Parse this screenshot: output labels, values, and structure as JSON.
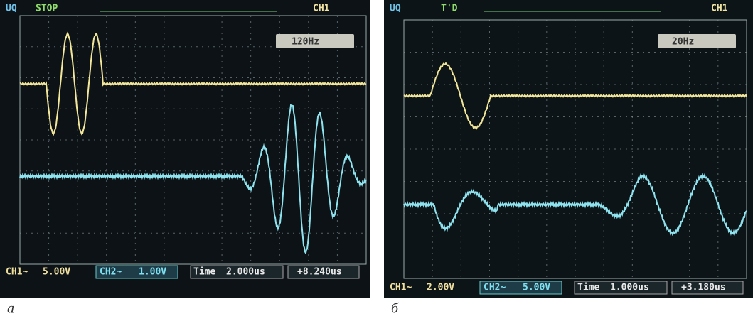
{
  "panels": [
    {
      "top_left": "UQ",
      "status": "STOP",
      "channel": "CH1",
      "frequency": "120Hz",
      "ch1": {
        "label": "CH1~",
        "scale": "5.00V"
      },
      "ch2": {
        "label": "CH2~",
        "scale": "1.00V"
      },
      "time": {
        "label": "Time",
        "value": "2.000us"
      },
      "offset": "+8.240us",
      "caption": "а"
    },
    {
      "top_left": "UQ",
      "status": "T'D",
      "channel": "CH1",
      "frequency": "20Hz",
      "ch1": {
        "label": "CH1~",
        "scale": "2.00V"
      },
      "ch2": {
        "label": "CH2~",
        "scale": "5.00V"
      },
      "time": {
        "label": "Time",
        "value": "1.000us"
      },
      "offset": "+3.180us",
      "caption": "б"
    }
  ]
}
